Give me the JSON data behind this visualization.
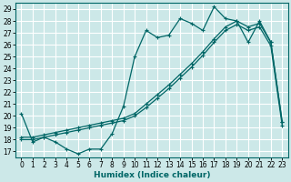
{
  "xlabel": "Humidex (Indice chaleur)",
  "bg_color": "#cce8e8",
  "grid_color": "#ffffff",
  "line_color": "#006666",
  "xlim": [
    -0.5,
    23.5
  ],
  "ylim": [
    16.5,
    29.5
  ],
  "yticks": [
    17,
    18,
    19,
    20,
    21,
    22,
    23,
    24,
    25,
    26,
    27,
    28,
    29
  ],
  "xticks": [
    0,
    1,
    2,
    3,
    4,
    5,
    6,
    7,
    8,
    9,
    10,
    11,
    12,
    13,
    14,
    15,
    16,
    17,
    18,
    19,
    20,
    21,
    22,
    23
  ],
  "series1_x": [
    0,
    1,
    2,
    3,
    4,
    5,
    6,
    7,
    8,
    9,
    10,
    11,
    12,
    13,
    14,
    15,
    16,
    17,
    18,
    19,
    20,
    21,
    22,
    23
  ],
  "series1_y": [
    20.2,
    17.8,
    18.2,
    17.8,
    17.2,
    16.8,
    17.2,
    17.2,
    18.5,
    20.8,
    25.0,
    27.2,
    26.6,
    26.8,
    28.2,
    27.8,
    27.2,
    29.2,
    28.2,
    28.0,
    26.2,
    28.0,
    26.2,
    19.5
  ],
  "series2_x": [
    0,
    1,
    2,
    3,
    4,
    5,
    6,
    7,
    8,
    9,
    10,
    11,
    12,
    13,
    14,
    15,
    16,
    17,
    18,
    19,
    20,
    21,
    22,
    23
  ],
  "series2_y": [
    18.2,
    18.2,
    18.4,
    18.6,
    18.8,
    19.0,
    19.2,
    19.4,
    19.6,
    19.8,
    20.2,
    21.0,
    21.8,
    22.6,
    23.5,
    24.4,
    25.4,
    26.5,
    27.5,
    28.0,
    27.5,
    27.8,
    26.2,
    19.5
  ],
  "series3_x": [
    0,
    1,
    2,
    3,
    4,
    5,
    6,
    7,
    8,
    9,
    10,
    11,
    12,
    13,
    14,
    15,
    16,
    17,
    18,
    19,
    20,
    21,
    22,
    23
  ],
  "series3_y": [
    18.0,
    18.0,
    18.2,
    18.4,
    18.6,
    18.8,
    19.0,
    19.2,
    19.4,
    19.6,
    20.0,
    20.7,
    21.5,
    22.3,
    23.2,
    24.1,
    25.1,
    26.2,
    27.2,
    27.7,
    27.2,
    27.5,
    25.9,
    19.2
  ]
}
